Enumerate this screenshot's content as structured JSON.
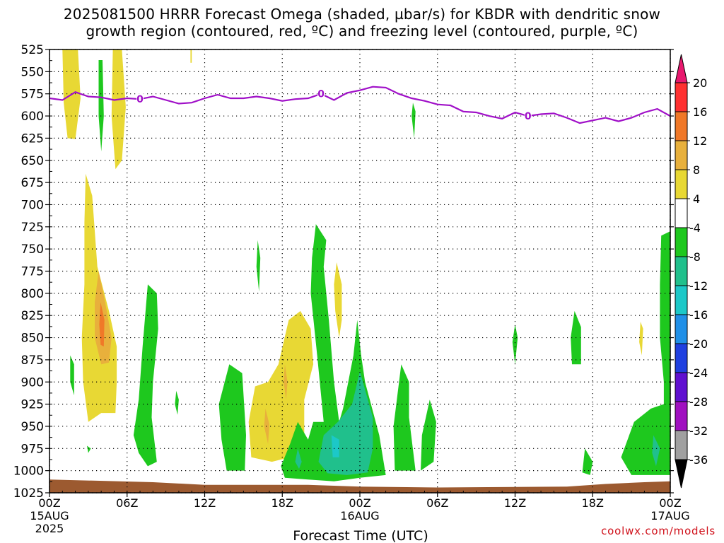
{
  "chart_data": {
    "type": "contour",
    "title_line1": "2025081500 HRRR Forecast Omega (shaded, µbar/s) for KBDR with dendritic snow",
    "title_line2": "growth region (contoured, red, ºC) and freezing level (contoured, purple, ºC)",
    "xlabel": "Forecast Time (UTC)",
    "ylabel": "",
    "y_ticks": [
      "525",
      "550",
      "575",
      "600",
      "625",
      "650",
      "675",
      "700",
      "725",
      "750",
      "775",
      "800",
      "825",
      "850",
      "875",
      "900",
      "925",
      "950",
      "975",
      "1000",
      "1025"
    ],
    "ylim": [
      525,
      1025
    ],
    "x_ticks": [
      {
        "hour": 0,
        "label": "00Z",
        "sub1": "15AUG",
        "sub2": "2025"
      },
      {
        "hour": 6,
        "label": "06Z",
        "sub1": "",
        "sub2": ""
      },
      {
        "hour": 12,
        "label": "12Z",
        "sub1": "",
        "sub2": ""
      },
      {
        "hour": 18,
        "label": "18Z",
        "sub1": "",
        "sub2": ""
      },
      {
        "hour": 24,
        "label": "00Z",
        "sub1": "16AUG",
        "sub2": ""
      },
      {
        "hour": 30,
        "label": "06Z",
        "sub1": "",
        "sub2": ""
      },
      {
        "hour": 36,
        "label": "12Z",
        "sub1": "",
        "sub2": ""
      },
      {
        "hour": 42,
        "label": "18Z",
        "sub1": "",
        "sub2": ""
      },
      {
        "hour": 48,
        "label": "00Z",
        "sub1": "17AUG",
        "sub2": ""
      }
    ],
    "xlim": [
      0,
      48
    ],
    "grid": true,
    "colorbar": {
      "labels": [
        "20",
        "16",
        "12",
        "8",
        "4",
        "-4",
        "-8",
        "-12",
        "-16",
        "-20",
        "-24",
        "-28",
        "-32",
        "-36"
      ],
      "colors": [
        "#e8186e",
        "#ff3030",
        "#f07828",
        "#e8b03c",
        "#e8d834",
        "#ffffff",
        "#1ec81e",
        "#20c08c",
        "#1cc8c8",
        "#2090e8",
        "#2040e0",
        "#6010d0",
        "#a010c0",
        "#a0a0a0",
        "#000000"
      ]
    },
    "freezing_level": {
      "label": "0",
      "color": "#a010c8",
      "points": [
        [
          0,
          580
        ],
        [
          1,
          582
        ],
        [
          2,
          573
        ],
        [
          3,
          578
        ],
        [
          4,
          579
        ],
        [
          5,
          582
        ],
        [
          6,
          580
        ],
        [
          7,
          581
        ],
        [
          8,
          578
        ],
        [
          9,
          582
        ],
        [
          10,
          586
        ],
        [
          11,
          585
        ],
        [
          12,
          580
        ],
        [
          13,
          576
        ],
        [
          14,
          580
        ],
        [
          15,
          580
        ],
        [
          16,
          578
        ],
        [
          17,
          580
        ],
        [
          18,
          583
        ],
        [
          19,
          581
        ],
        [
          20,
          580
        ],
        [
          21,
          575
        ],
        [
          22,
          582
        ],
        [
          23,
          574
        ],
        [
          24,
          571
        ],
        [
          25,
          567
        ],
        [
          26,
          568
        ],
        [
          27,
          575
        ],
        [
          28,
          580
        ],
        [
          29,
          583
        ],
        [
          30,
          587
        ],
        [
          31,
          588
        ],
        [
          32,
          595
        ],
        [
          33,
          596
        ],
        [
          34,
          600
        ],
        [
          35,
          603
        ],
        [
          36,
          596
        ],
        [
          37,
          600
        ],
        [
          38,
          598
        ],
        [
          39,
          597
        ],
        [
          40,
          602
        ],
        [
          41,
          608
        ],
        [
          42,
          605
        ],
        [
          43,
          602
        ],
        [
          44,
          606
        ],
        [
          45,
          602
        ],
        [
          46,
          596
        ],
        [
          47,
          592
        ],
        [
          48,
          600
        ]
      ],
      "label_hours": [
        7,
        21,
        37
      ]
    },
    "omega_regions": [
      {
        "level": "4",
        "color": "#e8d834",
        "points": [
          [
            1,
            525
          ],
          [
            2.2,
            525
          ],
          [
            2.4,
            580
          ],
          [
            2,
            626
          ],
          [
            1.4,
            625
          ],
          [
            1.1,
            585
          ]
        ]
      },
      {
        "level": "4",
        "color": "#e8d834",
        "points": [
          [
            4.9,
            525
          ],
          [
            5.6,
            525
          ],
          [
            5.9,
            590
          ],
          [
            5.6,
            650
          ],
          [
            5.1,
            660
          ],
          [
            4.8,
            600
          ]
        ]
      },
      {
        "level": "-4",
        "color": "#1ec81e",
        "points": [
          [
            3.8,
            537
          ],
          [
            4.1,
            537
          ],
          [
            4.2,
            600
          ],
          [
            4.0,
            640
          ],
          [
            3.8,
            600
          ]
        ]
      },
      {
        "level": "4",
        "color": "#e8d834",
        "points": [
          [
            2.8,
            665
          ],
          [
            3.3,
            690
          ],
          [
            3.7,
            770
          ],
          [
            4.6,
            820
          ],
          [
            5.2,
            860
          ],
          [
            5.2,
            900
          ],
          [
            5.1,
            935
          ],
          [
            4.0,
            935
          ],
          [
            3,
            945
          ],
          [
            2.6,
            900
          ],
          [
            2.5,
            850
          ],
          [
            2.7,
            790
          ],
          [
            2.7,
            720
          ]
        ]
      },
      {
        "level": "8",
        "color": "#e8b03c",
        "points": [
          [
            3.8,
            775
          ],
          [
            4.3,
            810
          ],
          [
            4.8,
            850
          ],
          [
            4.6,
            878
          ],
          [
            4.0,
            880
          ],
          [
            3.5,
            850
          ],
          [
            3.5,
            810
          ]
        ]
      },
      {
        "level": "12",
        "color": "#f07828",
        "points": [
          [
            3.95,
            810
          ],
          [
            4.25,
            830
          ],
          [
            4.2,
            860
          ],
          [
            3.95,
            858
          ],
          [
            3.85,
            835
          ]
        ]
      },
      {
        "level": "-4",
        "color": "#1ec81e",
        "points": [
          [
            7.6,
            790
          ],
          [
            8.3,
            800
          ],
          [
            8.4,
            840
          ],
          [
            8.0,
            900
          ],
          [
            7.9,
            940
          ],
          [
            8.3,
            990
          ],
          [
            7.6,
            995
          ],
          [
            6.9,
            980
          ],
          [
            6.5,
            960
          ],
          [
            6.9,
            920
          ],
          [
            7.2,
            860
          ]
        ]
      },
      {
        "level": "-4",
        "color": "#1ec81e",
        "points": [
          [
            1.6,
            870
          ],
          [
            1.9,
            880
          ],
          [
            1.9,
            915
          ],
          [
            1.6,
            900
          ]
        ]
      },
      {
        "level": "-4",
        "color": "#1ec81e",
        "points": [
          [
            2.9,
            972
          ],
          [
            3.2,
            975
          ],
          [
            3.0,
            980
          ]
        ]
      },
      {
        "level": "-4",
        "color": "#1ec81e",
        "points": [
          [
            9.8,
            910
          ],
          [
            10.0,
            920
          ],
          [
            9.9,
            937
          ],
          [
            9.7,
            925
          ]
        ]
      },
      {
        "level": "-4",
        "color": "#1ec81e",
        "points": [
          [
            16.1,
            740
          ],
          [
            16.3,
            760
          ],
          [
            16.2,
            798
          ],
          [
            16.0,
            770
          ]
        ]
      },
      {
        "level": "-4",
        "color": "#1ec81e",
        "points": [
          [
            13.9,
            880
          ],
          [
            14.9,
            890
          ],
          [
            15.2,
            960
          ],
          [
            15.1,
            1000
          ],
          [
            13.7,
            1000
          ],
          [
            13.3,
            965
          ],
          [
            13.1,
            925
          ]
        ]
      },
      {
        "level": "4",
        "color": "#e8d834",
        "points": [
          [
            18.5,
            830
          ],
          [
            19.4,
            820
          ],
          [
            20.2,
            840
          ],
          [
            20.4,
            880
          ],
          [
            19.7,
            920
          ],
          [
            19.7,
            960
          ],
          [
            18.6,
            985
          ],
          [
            17.2,
            990
          ],
          [
            15.6,
            985
          ],
          [
            15.4,
            945
          ],
          [
            15.9,
            905
          ],
          [
            16.9,
            900
          ],
          [
            17.7,
            880
          ]
        ]
      },
      {
        "level": "8",
        "color": "#e8b03c",
        "points": [
          [
            16.7,
            930
          ],
          [
            17,
            948
          ],
          [
            16.9,
            970
          ],
          [
            16.6,
            950
          ]
        ]
      },
      {
        "level": "8",
        "color": "#e8b03c",
        "points": [
          [
            18.2,
            880
          ],
          [
            18.4,
            900
          ],
          [
            18.3,
            920
          ],
          [
            18.1,
            900
          ]
        ]
      },
      {
        "level": "4",
        "color": "#e8d834",
        "points": [
          [
            22.2,
            765
          ],
          [
            22.6,
            790
          ],
          [
            22.6,
            830
          ],
          [
            22.4,
            850
          ],
          [
            22.1,
            820
          ],
          [
            22.0,
            790
          ]
        ]
      },
      {
        "level": "-4",
        "color": "#1ec81e",
        "points": [
          [
            20.6,
            722
          ],
          [
            21.4,
            740
          ],
          [
            21.2,
            770
          ],
          [
            21.6,
            830
          ],
          [
            22.0,
            900
          ],
          [
            22.4,
            945
          ],
          [
            22.7,
            930
          ],
          [
            23.5,
            870
          ],
          [
            23.8,
            830
          ],
          [
            24.1,
            870
          ],
          [
            24.4,
            900
          ],
          [
            25.5,
            960
          ],
          [
            26.0,
            1005
          ],
          [
            24,
            1008
          ],
          [
            22,
            1012
          ],
          [
            20,
            1010
          ],
          [
            18.2,
            1008
          ],
          [
            17.9,
            995
          ],
          [
            18.6,
            970
          ],
          [
            19.2,
            945
          ],
          [
            20.0,
            965
          ],
          [
            20.4,
            945
          ],
          [
            21.2,
            945
          ],
          [
            20.7,
            870
          ],
          [
            20.2,
            800
          ],
          [
            20.3,
            760
          ]
        ]
      },
      {
        "level": "-8",
        "color": "#20c08c",
        "points": [
          [
            24.0,
            888
          ],
          [
            25.0,
            940
          ],
          [
            25.0,
            975
          ],
          [
            24.6,
            1002
          ],
          [
            23.0,
            1005
          ],
          [
            21.5,
            1003
          ],
          [
            20.8,
            990
          ],
          [
            21.2,
            960
          ],
          [
            22.3,
            945
          ],
          [
            23.4,
            925
          ]
        ]
      },
      {
        "level": "-12",
        "color": "#1cc8c8",
        "points": [
          [
            21.8,
            960
          ],
          [
            22.4,
            965
          ],
          [
            22.4,
            985
          ],
          [
            21.9,
            985
          ]
        ]
      },
      {
        "level": "-8",
        "color": "#20c08c",
        "points": [
          [
            19.2,
            975
          ],
          [
            19.5,
            990
          ],
          [
            19.3,
            998
          ],
          [
            19.0,
            990
          ]
        ]
      },
      {
        "level": "-4",
        "color": "#1ec81e",
        "points": [
          [
            27.2,
            880
          ],
          [
            27.8,
            900
          ],
          [
            27.8,
            940
          ],
          [
            28.3,
            1000
          ],
          [
            26.7,
            1000
          ],
          [
            26.6,
            950
          ]
        ]
      },
      {
        "level": "-4",
        "color": "#1ec81e",
        "points": [
          [
            29.4,
            920
          ],
          [
            29.9,
            945
          ],
          [
            29.7,
            990
          ],
          [
            28.7,
            1000
          ],
          [
            28.8,
            960
          ]
        ]
      },
      {
        "level": "-4",
        "color": "#1ec81e",
        "points": [
          [
            28.1,
            585
          ],
          [
            28.3,
            595
          ],
          [
            28.2,
            625
          ],
          [
            28.0,
            600
          ]
        ]
      },
      {
        "level": "-4",
        "color": "#1ec81e",
        "points": [
          [
            36.0,
            835
          ],
          [
            36.2,
            850
          ],
          [
            36.0,
            880
          ],
          [
            35.8,
            855
          ]
        ]
      },
      {
        "level": "-4",
        "color": "#1ec81e",
        "points": [
          [
            40.6,
            820
          ],
          [
            41.1,
            838
          ],
          [
            41.1,
            880
          ],
          [
            40.4,
            880
          ],
          [
            40.3,
            850
          ]
        ]
      },
      {
        "level": "-4",
        "color": "#1ec81e",
        "points": [
          [
            41.4,
            975
          ],
          [
            42.0,
            990
          ],
          [
            41.8,
            1005
          ],
          [
            41.2,
            1002
          ]
        ]
      },
      {
        "level": "4",
        "color": "#e8d834",
        "points": [
          [
            45.7,
            832
          ],
          [
            45.9,
            840
          ],
          [
            45.8,
            870
          ],
          [
            45.6,
            855
          ]
        ]
      },
      {
        "level": "-4",
        "color": "#1ec81e",
        "points": [
          [
            47.3,
            735
          ],
          [
            48,
            730
          ],
          [
            48,
            1005
          ],
          [
            45.0,
            1005
          ],
          [
            44.2,
            985
          ],
          [
            45.2,
            945
          ],
          [
            46.5,
            930
          ],
          [
            47.5,
            925
          ],
          [
            47.5,
            900
          ],
          [
            47.2,
            850
          ],
          [
            47.2,
            790
          ]
        ]
      },
      {
        "level": "-8",
        "color": "#20c08c",
        "points": [
          [
            46.7,
            960
          ],
          [
            47.2,
            975
          ],
          [
            46.9,
            995
          ],
          [
            46.6,
            980
          ]
        ]
      },
      {
        "level": "4",
        "color": "#e8d834",
        "points": [
          [
            10.9,
            525
          ],
          [
            11.0,
            525
          ],
          [
            11.0,
            540
          ],
          [
            10.9,
            540
          ]
        ]
      }
    ],
    "surface_color": "#9c5a30",
    "surface_points": [
      [
        0,
        1010
      ],
      [
        8,
        1013
      ],
      [
        12,
        1016
      ],
      [
        20,
        1016
      ],
      [
        24,
        1018
      ],
      [
        30,
        1019
      ],
      [
        40,
        1018
      ],
      [
        43,
        1015
      ],
      [
        46,
        1013
      ],
      [
        48,
        1012
      ]
    ]
  },
  "credit": "coolwx.com/models"
}
